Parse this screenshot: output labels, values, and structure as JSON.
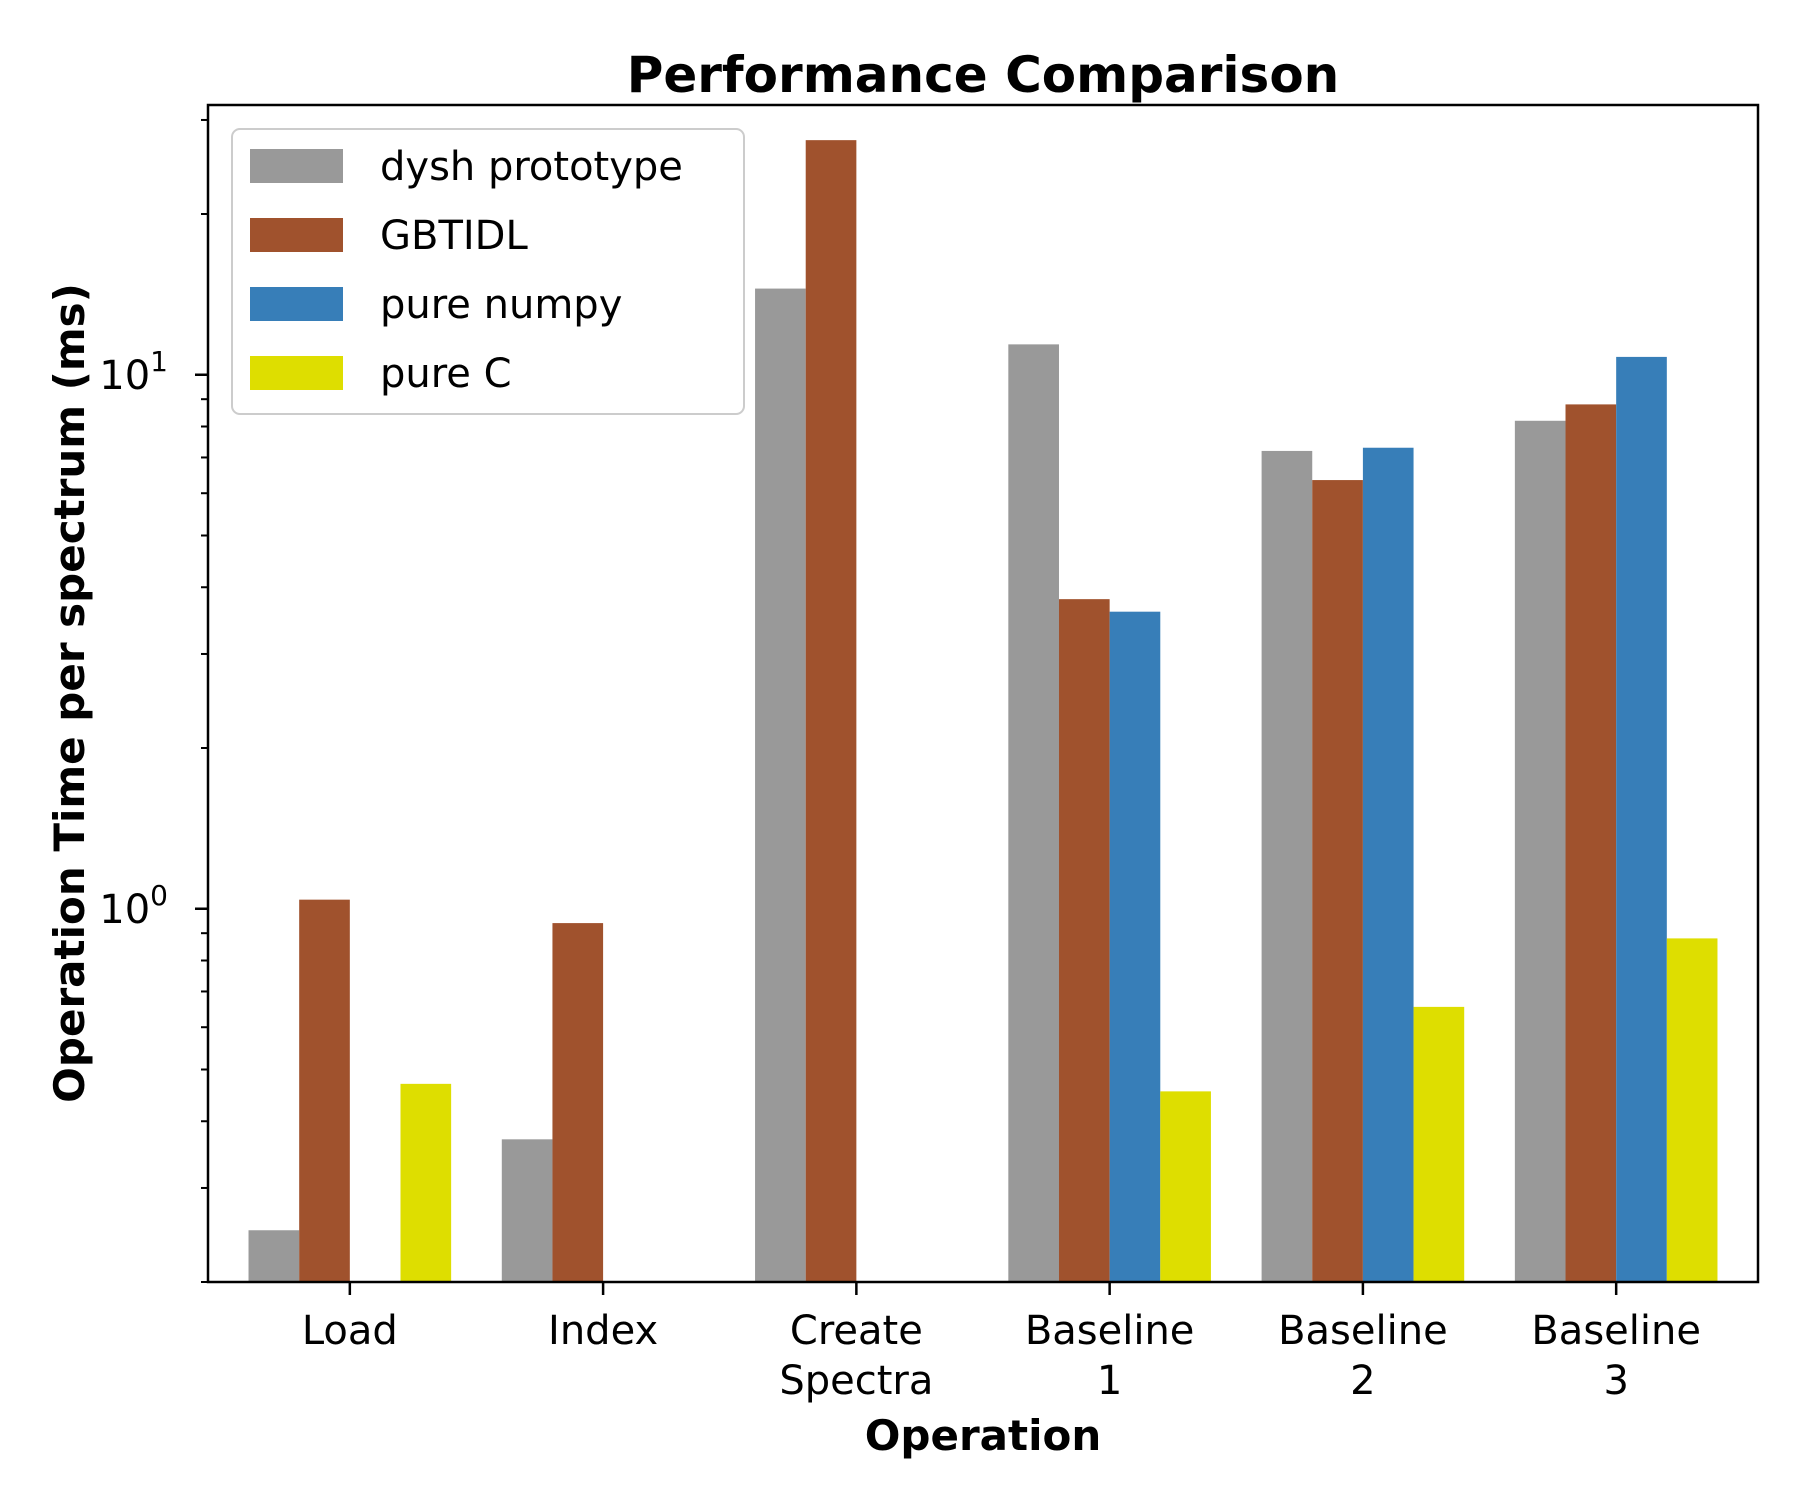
{
  "chart_data": {
    "type": "bar",
    "title": "Performance Comparison",
    "xlabel": "Operation",
    "ylabel": "Operation Time per spectrum (ms)",
    "yscale": "log",
    "ylim": [
      0.2,
      32
    ],
    "yticks": [
      {
        "base": "10",
        "exp": "0",
        "value": 1
      },
      {
        "base": "10",
        "exp": "1",
        "value": 10
      }
    ],
    "grid": false,
    "legend_position": "top-left",
    "categories": [
      [
        "Load"
      ],
      [
        "Index"
      ],
      [
        "Create",
        "Spectra"
      ],
      [
        "Baseline",
        "1"
      ],
      [
        "Baseline",
        "2"
      ],
      [
        "Baseline",
        "3"
      ]
    ],
    "series": [
      {
        "name": "dysh prototype",
        "color": "#999999",
        "values": [
          0.25,
          0.37,
          14.5,
          11.4,
          7.2,
          8.2
        ]
      },
      {
        "name": "GBTIDL",
        "color": "#a0522d",
        "values": [
          1.04,
          0.94,
          27.5,
          3.8,
          6.35,
          8.8
        ]
      },
      {
        "name": "pure numpy",
        "color": "#377eb8",
        "values": [
          null,
          null,
          null,
          3.6,
          7.3,
          10.8
        ]
      },
      {
        "name": "pure C",
        "color": "#dede00",
        "values": [
          0.47,
          null,
          null,
          0.455,
          0.655,
          0.88
        ]
      }
    ]
  }
}
